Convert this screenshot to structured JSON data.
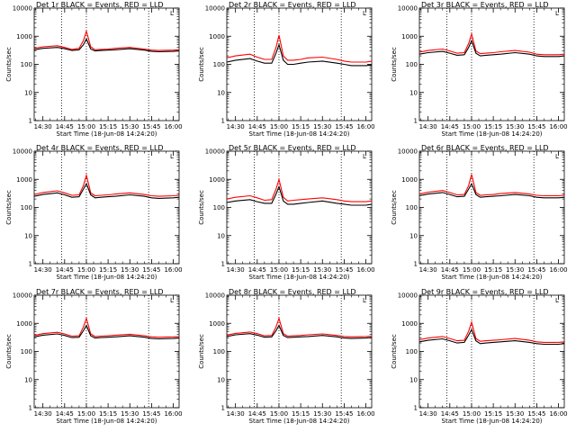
{
  "figure": {
    "series_legend": [
      "BLACK = Events",
      "RED = LLD"
    ],
    "colors": {
      "events": "#000000",
      "lld": "#ff0000",
      "background": "#ffffff"
    },
    "xlabel": "Start Time (18-Jun-08 14:24:20)",
    "ylabel": "Counts/sec",
    "x_ticks": [
      "14:30",
      "14:45",
      "15:00",
      "15:15",
      "15:30",
      "15:45",
      "16:00"
    ],
    "y_ticks": [
      "1",
      "10",
      "100",
      "1000",
      "10000"
    ],
    "top_right_marker": "L"
  },
  "chart_data": [
    {
      "type": "line",
      "title": "Det 1r BLACK = Events, RED = LLD",
      "xlabel": "Start Time (18-Jun-08 14:24:20)",
      "ylabel": "Counts/sec",
      "yscale": "log",
      "ylim": [
        1,
        10000
      ],
      "xlim": [
        "14:24",
        "16:04"
      ],
      "vlines": [
        "14:43",
        "15:00",
        "15:43"
      ],
      "x": [
        "14:24",
        "14:30",
        "14:40",
        "14:45",
        "14:50",
        "14:55",
        "14:58",
        "15:00",
        "15:03",
        "15:06",
        "15:10",
        "15:15",
        "15:20",
        "15:30",
        "15:40",
        "15:45",
        "15:50",
        "16:00",
        "16:04"
      ],
      "series": [
        {
          "name": "Events",
          "color": "black",
          "values": [
            330,
            370,
            400,
            360,
            310,
            330,
            500,
            800,
            350,
            300,
            310,
            320,
            330,
            360,
            320,
            290,
            280,
            290,
            300
          ]
        },
        {
          "name": "LLD",
          "color": "red",
          "values": [
            370,
            420,
            460,
            400,
            340,
            370,
            700,
            1500,
            420,
            330,
            340,
            350,
            370,
            400,
            350,
            320,
            310,
            320,
            330
          ]
        }
      ]
    },
    {
      "type": "line",
      "title": "Det 2r BLACK = Events, RED = LLD",
      "xlabel": "Start Time (18-Jun-08 14:24:20)",
      "ylabel": "Counts/sec",
      "yscale": "log",
      "ylim": [
        1,
        10000
      ],
      "xlim": [
        "14:24",
        "16:04"
      ],
      "vlines": [
        "14:43",
        "15:00",
        "15:43"
      ],
      "x": [
        "14:24",
        "14:30",
        "14:40",
        "14:45",
        "14:50",
        "14:55",
        "14:58",
        "15:00",
        "15:03",
        "15:06",
        "15:10",
        "15:15",
        "15:20",
        "15:30",
        "15:40",
        "15:45",
        "15:50",
        "16:00",
        "16:04"
      ],
      "series": [
        {
          "name": "Events",
          "color": "black",
          "values": [
            120,
            140,
            160,
            130,
            110,
            110,
            250,
            500,
            140,
            100,
            100,
            110,
            120,
            130,
            110,
            100,
            90,
            90,
            95
          ]
        },
        {
          "name": "LLD",
          "color": "red",
          "values": [
            170,
            200,
            230,
            180,
            150,
            150,
            400,
            1100,
            200,
            140,
            140,
            150,
            170,
            180,
            150,
            130,
            120,
            120,
            130
          ]
        }
      ]
    },
    {
      "type": "line",
      "title": "Det 3r BLACK = Events, RED = LLD",
      "xlabel": "Start Time (18-Jun-08 14:24:20)",
      "ylabel": "Counts/sec",
      "yscale": "log",
      "ylim": [
        1,
        10000
      ],
      "xlim": [
        "14:24",
        "16:04"
      ],
      "vlines": [
        "14:43",
        "15:00",
        "15:43"
      ],
      "x": [
        "14:24",
        "14:30",
        "14:40",
        "14:45",
        "14:50",
        "14:55",
        "14:58",
        "15:00",
        "15:03",
        "15:06",
        "15:10",
        "15:15",
        "15:20",
        "15:30",
        "15:40",
        "15:45",
        "15:50",
        "16:00",
        "16:04"
      ],
      "series": [
        {
          "name": "Events",
          "color": "black",
          "values": [
            230,
            260,
            290,
            250,
            210,
            220,
            400,
            700,
            250,
            200,
            210,
            220,
            230,
            260,
            230,
            200,
            190,
            190,
            200
          ]
        },
        {
          "name": "LLD",
          "color": "red",
          "values": [
            270,
            310,
            350,
            300,
            250,
            260,
            550,
            1200,
            300,
            240,
            250,
            260,
            280,
            310,
            270,
            230,
            220,
            220,
            230
          ]
        }
      ]
    },
    {
      "type": "line",
      "title": "Det 4r BLACK = Events, RED = LLD",
      "xlabel": "Start Time (18-Jun-08 14:24:20)",
      "ylabel": "Counts/sec",
      "yscale": "log",
      "ylim": [
        1,
        10000
      ],
      "xlim": [
        "14:24",
        "16:04"
      ],
      "vlines": [
        "14:43",
        "15:00",
        "15:43"
      ],
      "x": [
        "14:24",
        "14:30",
        "14:40",
        "14:45",
        "14:50",
        "14:55",
        "14:58",
        "15:00",
        "15:03",
        "15:06",
        "15:10",
        "15:15",
        "15:20",
        "15:30",
        "15:40",
        "15:45",
        "15:50",
        "16:00",
        "16:04"
      ],
      "series": [
        {
          "name": "Events",
          "color": "black",
          "values": [
            250,
            290,
            330,
            280,
            230,
            240,
            450,
            700,
            280,
            220,
            230,
            240,
            250,
            280,
            250,
            220,
            210,
            220,
            230
          ]
        },
        {
          "name": "LLD",
          "color": "red",
          "values": [
            290,
            340,
            390,
            330,
            270,
            280,
            600,
            1400,
            330,
            260,
            270,
            280,
            300,
            330,
            290,
            260,
            250,
            260,
            270
          ]
        }
      ]
    },
    {
      "type": "line",
      "title": "Det 5r BLACK = Events, RED = LLD",
      "xlabel": "Start Time (18-Jun-08 14:24:20)",
      "ylabel": "Counts/sec",
      "yscale": "log",
      "ylim": [
        1,
        10000
      ],
      "xlim": [
        "14:24",
        "16:04"
      ],
      "vlines": [
        "14:43",
        "15:00",
        "15:43"
      ],
      "x": [
        "14:24",
        "14:30",
        "14:40",
        "14:45",
        "14:50",
        "14:55",
        "14:58",
        "15:00",
        "15:03",
        "15:06",
        "15:10",
        "15:15",
        "15:20",
        "15:30",
        "15:40",
        "15:45",
        "15:50",
        "16:00",
        "16:04"
      ],
      "series": [
        {
          "name": "Events",
          "color": "black",
          "values": [
            150,
            170,
            190,
            160,
            140,
            140,
            300,
            550,
            170,
            130,
            130,
            140,
            150,
            170,
            140,
            130,
            120,
            120,
            130
          ]
        },
        {
          "name": "LLD",
          "color": "red",
          "values": [
            200,
            230,
            260,
            220,
            180,
            190,
            450,
            1000,
            230,
            170,
            180,
            190,
            200,
            220,
            190,
            170,
            160,
            160,
            170
          ]
        }
      ]
    },
    {
      "type": "line",
      "title": "Det 6r BLACK = Events, RED = LLD",
      "xlabel": "Start Time (18-Jun-08 14:24:20)",
      "ylabel": "Counts/sec",
      "yscale": "log",
      "ylim": [
        1,
        10000
      ],
      "xlim": [
        "14:24",
        "16:04"
      ],
      "vlines": [
        "14:43",
        "15:00",
        "15:43"
      ],
      "x": [
        "14:24",
        "14:30",
        "14:40",
        "14:45",
        "14:50",
        "14:55",
        "14:58",
        "15:00",
        "15:03",
        "15:06",
        "15:10",
        "15:15",
        "15:20",
        "15:30",
        "15:40",
        "15:45",
        "15:50",
        "16:00",
        "16:04"
      ],
      "series": [
        {
          "name": "Events",
          "color": "black",
          "values": [
            260,
            300,
            340,
            290,
            240,
            250,
            450,
            700,
            290,
            230,
            240,
            250,
            260,
            290,
            260,
            230,
            220,
            220,
            230
          ]
        },
        {
          "name": "LLD",
          "color": "red",
          "values": [
            300,
            350,
            400,
            340,
            280,
            290,
            600,
            1500,
            340,
            270,
            280,
            290,
            310,
            340,
            300,
            270,
            260,
            260,
            270
          ]
        }
      ]
    },
    {
      "type": "line",
      "title": "Det 7r BLACK = Events, RED = LLD",
      "xlabel": "Start Time (18-Jun-08 14:24:20)",
      "ylabel": "Counts/sec",
      "yscale": "log",
      "ylim": [
        1,
        10000
      ],
      "xlim": [
        "14:24",
        "16:04"
      ],
      "vlines": [
        "14:43",
        "15:00",
        "15:43"
      ],
      "x": [
        "14:24",
        "14:30",
        "14:40",
        "14:45",
        "14:50",
        "14:55",
        "14:58",
        "15:00",
        "15:03",
        "15:06",
        "15:10",
        "15:15",
        "15:20",
        "15:30",
        "15:40",
        "15:45",
        "15:50",
        "16:00",
        "16:04"
      ],
      "series": [
        {
          "name": "Events",
          "color": "black",
          "values": [
            330,
            380,
            420,
            370,
            310,
            320,
            550,
            850,
            360,
            300,
            310,
            320,
            330,
            360,
            320,
            290,
            280,
            290,
            300
          ]
        },
        {
          "name": "LLD",
          "color": "red",
          "values": [
            370,
            430,
            480,
            420,
            350,
            360,
            750,
            1500,
            420,
            340,
            350,
            360,
            380,
            410,
            360,
            330,
            320,
            330,
            340
          ]
        }
      ]
    },
    {
      "type": "line",
      "title": "Det 8r BLACK = Events, RED = LLD",
      "xlabel": "Start Time (18-Jun-08 14:24:20)",
      "ylabel": "Counts/sec",
      "yscale": "log",
      "ylim": [
        1,
        10000
      ],
      "xlim": [
        "14:24",
        "16:04"
      ],
      "vlines": [
        "14:43",
        "15:00",
        "15:43"
      ],
      "x": [
        "14:24",
        "14:30",
        "14:40",
        "14:45",
        "14:50",
        "14:55",
        "14:58",
        "15:00",
        "15:03",
        "15:06",
        "15:10",
        "15:15",
        "15:20",
        "15:30",
        "15:40",
        "15:45",
        "15:50",
        "16:00",
        "16:04"
      ],
      "series": [
        {
          "name": "Events",
          "color": "black",
          "values": [
            340,
            390,
            430,
            380,
            320,
            330,
            550,
            850,
            370,
            310,
            320,
            330,
            340,
            370,
            330,
            300,
            290,
            300,
            310
          ]
        },
        {
          "name": "LLD",
          "color": "red",
          "values": [
            380,
            440,
            490,
            430,
            360,
            370,
            750,
            1500,
            430,
            350,
            360,
            370,
            390,
            420,
            370,
            340,
            330,
            340,
            350
          ]
        }
      ]
    },
    {
      "type": "line",
      "title": "Det 9r BLACK = Events, RED = LLD",
      "xlabel": "Start Time (18-Jun-08 14:24:20)",
      "ylabel": "Counts/sec",
      "yscale": "log",
      "ylim": [
        1,
        10000
      ],
      "xlim": [
        "14:24",
        "16:04"
      ],
      "vlines": [
        "14:43",
        "15:00",
        "15:43"
      ],
      "x": [
        "14:24",
        "14:30",
        "14:40",
        "14:45",
        "14:50",
        "14:55",
        "14:58",
        "15:00",
        "15:03",
        "15:06",
        "15:10",
        "15:15",
        "15:20",
        "15:30",
        "15:40",
        "15:45",
        "15:50",
        "16:00",
        "16:04"
      ],
      "series": [
        {
          "name": "Events",
          "color": "black",
          "values": [
            220,
            250,
            280,
            240,
            200,
            210,
            380,
            600,
            240,
            190,
            200,
            210,
            220,
            240,
            210,
            190,
            180,
            180,
            190
          ]
        },
        {
          "name": "LLD",
          "color": "red",
          "values": [
            260,
            300,
            340,
            290,
            240,
            250,
            520,
            1100,
            290,
            230,
            240,
            250,
            260,
            290,
            250,
            220,
            210,
            210,
            220
          ]
        }
      ]
    }
  ]
}
